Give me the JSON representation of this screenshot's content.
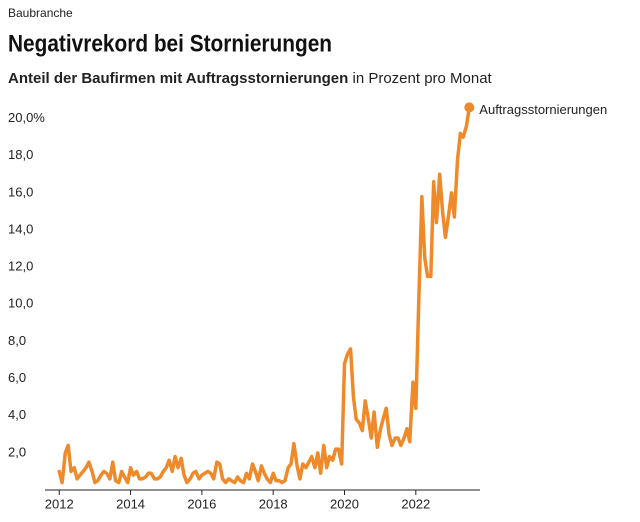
{
  "chart_data": {
    "type": "line",
    "kicker": "Baubranche",
    "title": "Negativrekord bei Stornierungen",
    "subtitle_emphasis": "Anteil der Baufirmen mit Auftragsstornierungen",
    "subtitle": "in Prozent pro Monat",
    "x": [
      2012,
      2012.08,
      2012.17,
      2012.25,
      2012.33,
      2012.42,
      2012.5,
      2012.58,
      2012.67,
      2012.75,
      2012.83,
      2012.92,
      2013,
      2013.08,
      2013.17,
      2013.25,
      2013.33,
      2013.42,
      2013.5,
      2013.58,
      2013.67,
      2013.75,
      2013.83,
      2013.92,
      2014,
      2014.08,
      2014.17,
      2014.25,
      2014.33,
      2014.42,
      2014.5,
      2014.58,
      2014.67,
      2014.75,
      2014.83,
      2014.92,
      2015,
      2015.08,
      2015.17,
      2015.25,
      2015.33,
      2015.42,
      2015.5,
      2015.58,
      2015.67,
      2015.75,
      2015.83,
      2015.92,
      2016,
      2016.08,
      2016.17,
      2016.25,
      2016.33,
      2016.42,
      2016.5,
      2016.58,
      2016.67,
      2016.75,
      2016.83,
      2016.92,
      2017,
      2017.08,
      2017.17,
      2017.25,
      2017.33,
      2017.42,
      2017.5,
      2017.58,
      2017.67,
      2017.75,
      2017.83,
      2017.92,
      2018,
      2018.08,
      2018.17,
      2018.25,
      2018.33,
      2018.42,
      2018.5,
      2018.58,
      2018.67,
      2018.75,
      2018.83,
      2018.92,
      2019,
      2019.08,
      2019.17,
      2019.25,
      2019.33,
      2019.42,
      2019.5,
      2019.58,
      2019.67,
      2019.75,
      2019.83,
      2019.92,
      2020,
      2020.08,
      2020.17,
      2020.25,
      2020.33,
      2020.42,
      2020.5,
      2020.58,
      2020.67,
      2020.75,
      2020.83,
      2020.92,
      2021,
      2021.08,
      2021.17,
      2021.25,
      2021.33,
      2021.42,
      2021.5,
      2021.58,
      2021.67,
      2021.75,
      2021.83,
      2021.92,
      2022,
      2022.08,
      2022.17,
      2022.25,
      2022.33,
      2022.42,
      2022.5,
      2022.58,
      2022.67,
      2022.75,
      2022.83,
      2022.92,
      2023,
      2023.08,
      2023.17,
      2023.25,
      2023.33,
      2023.42,
      2023.5
    ],
    "series": [
      {
        "name": "Auftragsstornierungen",
        "color": "#ef8a2b",
        "values": [
          1.0,
          0.4,
          2.0,
          2.4,
          1.0,
          1.2,
          0.6,
          0.8,
          1.0,
          1.2,
          1.5,
          1.0,
          0.4,
          0.5,
          0.8,
          1.0,
          0.9,
          0.6,
          1.5,
          0.5,
          0.4,
          1.0,
          0.7,
          0.4,
          1.2,
          0.8,
          1.0,
          0.6,
          0.6,
          0.7,
          0.9,
          0.9,
          0.6,
          0.6,
          0.7,
          1.0,
          1.2,
          1.6,
          1.0,
          1.8,
          1.2,
          1.7,
          0.8,
          0.4,
          0.6,
          0.9,
          1.0,
          0.6,
          0.8,
          0.9,
          1.0,
          0.9,
          0.6,
          1.5,
          1.4,
          0.6,
          0.4,
          0.6,
          0.5,
          0.4,
          0.7,
          0.5,
          0.4,
          0.9,
          0.6,
          1.4,
          1.0,
          0.5,
          1.3,
          0.9,
          0.6,
          0.4,
          0.9,
          0.5,
          0.5,
          0.4,
          0.5,
          1.2,
          1.4,
          2.5,
          1.3,
          0.6,
          1.4,
          1.2,
          1.5,
          1.8,
          1.2,
          2.0,
          0.9,
          2.4,
          1.2,
          1.8,
          1.6,
          2.2,
          2.2,
          1.4,
          6.8,
          7.3,
          7.6,
          5.0,
          3.8,
          3.6,
          3.2,
          4.8,
          3.8,
          2.8,
          4.2,
          2.3,
          3.2,
          3.8,
          4.4,
          3.0,
          2.4,
          2.8,
          2.8,
          2.4,
          2.8,
          3.3,
          2.6,
          5.8,
          4.4,
          10.0,
          15.8,
          12.5,
          11.5,
          11.5,
          16.6,
          14.4,
          17.0,
          15.0,
          13.6,
          14.8,
          16.0,
          14.7,
          17.8,
          19.2,
          19.0,
          19.6,
          20.6
        ]
      }
    ],
    "xlim": [
      2011.6,
      2023.8
    ],
    "xticks": [
      2012,
      2014,
      2016,
      2018,
      2020,
      2022
    ],
    "ylim": [
      0,
      21
    ],
    "yticks": [
      {
        "value": 2,
        "label": "2,0"
      },
      {
        "value": 4,
        "label": "4,0"
      },
      {
        "value": 6,
        "label": "6,0"
      },
      {
        "value": 8,
        "label": "8,0"
      },
      {
        "value": 10,
        "label": "10,0"
      },
      {
        "value": 12,
        "label": "12,0"
      },
      {
        "value": 14,
        "label": "14,0"
      },
      {
        "value": 16,
        "label": "16,0"
      },
      {
        "value": 18,
        "label": "18,0"
      },
      {
        "value": 20,
        "label": "20,0%"
      }
    ],
    "grid": false
  }
}
